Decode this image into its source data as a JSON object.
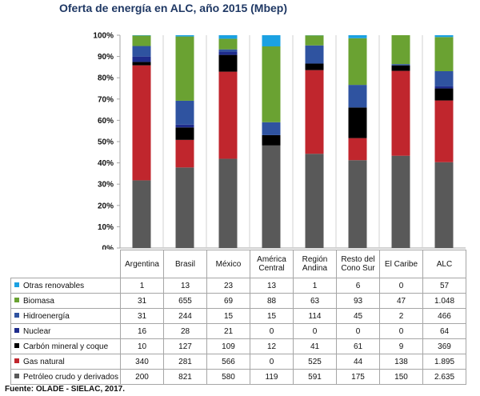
{
  "title": "Oferta de energía en ALC, año 2015 (Mbep)",
  "source": "Fuente: OLADE - SIELAC, 2017.",
  "chart_data": {
    "type": "bar",
    "stacked": "percent",
    "title": "Oferta de energía en ALC, año 2015 (Mbep)",
    "ylim": [
      0,
      100
    ],
    "y_ticks": [
      "0%",
      "10%",
      "20%",
      "30%",
      "40%",
      "50%",
      "60%",
      "70%",
      "80%",
      "90%",
      "100%"
    ],
    "grid": false,
    "categories": [
      "Argentina",
      "Brasil",
      "México",
      "América Central",
      "Región Andina",
      "Resto del Cono Sur",
      "El Caribe",
      "ALC"
    ],
    "series": [
      {
        "name": "Otras renovables",
        "color": "#1ba1e2",
        "values": [
          1,
          13,
          23,
          13,
          1,
          6,
          0,
          57
        ],
        "labels": [
          "1",
          "13",
          "23",
          "13",
          "1",
          "6",
          "0",
          "57"
        ]
      },
      {
        "name": "Biomasa",
        "color": "#6aa232",
        "values": [
          31,
          655,
          69,
          88,
          63,
          93,
          47,
          1048
        ],
        "labels": [
          "31",
          "655",
          "69",
          "88",
          "63",
          "93",
          "47",
          "1.048"
        ]
      },
      {
        "name": "Hidroenergía",
        "color": "#2f53a0",
        "values": [
          31,
          244,
          15,
          15,
          114,
          45,
          2,
          466
        ],
        "labels": [
          "31",
          "244",
          "15",
          "15",
          "114",
          "45",
          "2",
          "466"
        ]
      },
      {
        "name": "Nuclear",
        "color": "#1f2c8c",
        "values": [
          16,
          28,
          21,
          0,
          0,
          0,
          0,
          64
        ],
        "labels": [
          "16",
          "28",
          "21",
          "0",
          "0",
          "0",
          "0",
          "64"
        ]
      },
      {
        "name": "Carbón mineral y coque",
        "color": "#000000",
        "values": [
          10,
          127,
          109,
          12,
          41,
          61,
          9,
          369
        ],
        "labels": [
          "10",
          "127",
          "109",
          "12",
          "41",
          "61",
          "9",
          "369"
        ]
      },
      {
        "name": "Gas natural",
        "color": "#c0262d",
        "values": [
          340,
          281,
          566,
          0,
          525,
          44,
          138,
          1895
        ],
        "labels": [
          "340",
          "281",
          "566",
          "0",
          "525",
          "44",
          "138",
          "1.895"
        ]
      },
      {
        "name": "Petróleo crudo y derivados",
        "color": "#595959",
        "values": [
          200,
          821,
          580,
          119,
          591,
          175,
          150,
          2635
        ],
        "labels": [
          "200",
          "821",
          "580",
          "119",
          "591",
          "175",
          "150",
          "2.635"
        ]
      }
    ]
  },
  "table": {
    "col_headers": [
      "Argentina",
      "Brasil",
      "México",
      "América\nCentral",
      "Región\nAndina",
      "Resto del\nCono Sur",
      "El Caribe",
      "ALC"
    ]
  }
}
